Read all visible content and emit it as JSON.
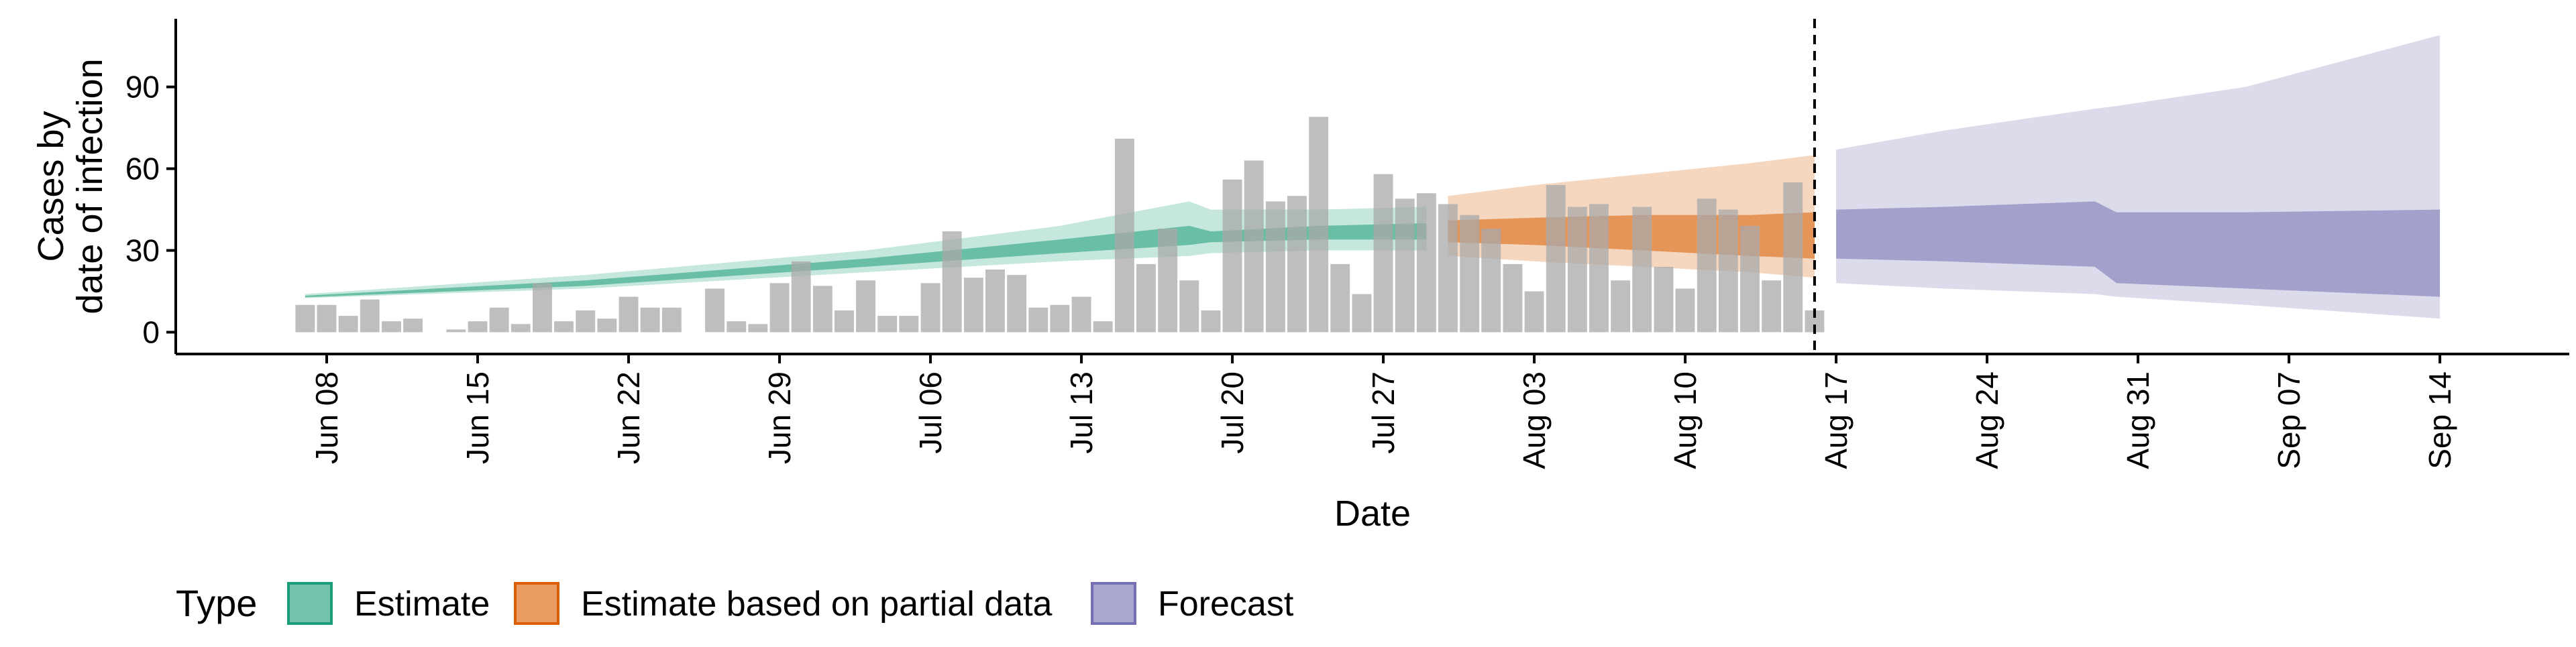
{
  "chart_data": {
    "type": "area",
    "xlabel": "Date",
    "ylabel": [
      "Cases by",
      "date of infection"
    ],
    "ylim": [
      -8,
      115
    ],
    "yticks": [
      0,
      30,
      60,
      90
    ],
    "x_range": [
      "2020-06-01",
      "2020-09-20"
    ],
    "x_ticks": [
      {
        "date": "2020-06-08",
        "label": "Jun 08"
      },
      {
        "date": "2020-06-15",
        "label": "Jun 15"
      },
      {
        "date": "2020-06-22",
        "label": "Jun 22"
      },
      {
        "date": "2020-06-29",
        "label": "Jun 29"
      },
      {
        "date": "2020-07-06",
        "label": "Jul 06"
      },
      {
        "date": "2020-07-13",
        "label": "Jul 13"
      },
      {
        "date": "2020-07-20",
        "label": "Jul 20"
      },
      {
        "date": "2020-07-27",
        "label": "Jul 27"
      },
      {
        "date": "2020-08-03",
        "label": "Aug 03"
      },
      {
        "date": "2020-08-10",
        "label": "Aug 10"
      },
      {
        "date": "2020-08-17",
        "label": "Aug 17"
      },
      {
        "date": "2020-08-24",
        "label": "Aug 24"
      },
      {
        "date": "2020-08-31",
        "label": "Aug 31"
      },
      {
        "date": "2020-09-07",
        "label": "Sep 07"
      },
      {
        "date": "2020-09-14",
        "label": "Sep 14"
      }
    ],
    "reported_cases": {
      "start_date": "2020-06-07",
      "values": [
        10,
        10,
        6,
        12,
        4,
        5,
        0,
        1,
        4,
        9,
        3,
        18,
        4,
        8,
        5,
        13,
        9,
        9,
        0,
        16,
        4,
        3,
        18,
        26,
        17,
        8,
        19,
        6,
        6,
        18,
        37,
        20,
        23,
        21,
        9,
        10,
        13,
        4,
        71,
        25,
        38,
        19,
        8,
        56,
        63,
        48,
        50,
        79,
        25,
        14,
        58,
        49,
        51,
        47,
        43,
        38,
        25,
        15,
        54,
        46,
        47,
        19,
        46,
        24,
        16,
        49,
        45,
        39,
        19,
        55,
        8
      ]
    },
    "estimate_date_marker": "2020-08-16",
    "legend": {
      "title": "Type",
      "position": "bottom",
      "items": [
        {
          "label": "Estimate",
          "color": "#1b9e77"
        },
        {
          "label": "Estimate based on partial data",
          "color": "#d95f02"
        },
        {
          "label": "Forecast",
          "color": "#7570b3"
        }
      ]
    },
    "bands": [
      {
        "type": "Estimate",
        "color": "#1b9e77",
        "points": [
          {
            "date": "2020-06-07",
            "lo90": 12.5,
            "lo50": 12.8,
            "hi50": 13.4,
            "hi90": 14.0
          },
          {
            "date": "2020-06-20",
            "lo90": 16.0,
            "lo50": 17.0,
            "hi50": 19.0,
            "hi90": 21.0
          },
          {
            "date": "2020-07-03",
            "lo90": 22.0,
            "lo50": 24.0,
            "hi50": 27.0,
            "hi90": 30.0
          },
          {
            "date": "2020-07-12",
            "lo90": 26.0,
            "lo50": 29.0,
            "hi50": 34.0,
            "hi90": 39.0
          },
          {
            "date": "2020-07-18",
            "lo90": 28.0,
            "lo50": 32.0,
            "hi50": 39.0,
            "hi90": 48.0
          },
          {
            "date": "2020-07-19",
            "lo90": 29.0,
            "lo50": 33.0,
            "hi50": 37.0,
            "hi90": 45.0
          },
          {
            "date": "2020-07-24",
            "lo90": 30.0,
            "lo50": 34.0,
            "hi50": 39.0,
            "hi90": 45.0
          },
          {
            "date": "2020-07-29",
            "lo90": 30.0,
            "lo50": 34.0,
            "hi50": 40.0,
            "hi90": 46.0
          }
        ]
      },
      {
        "type": "Estimate based on partial data",
        "color": "#d95f02",
        "points": [
          {
            "date": "2020-07-30",
            "lo90": 28.0,
            "lo50": 33.0,
            "hi50": 41.0,
            "hi90": 50.0
          },
          {
            "date": "2020-08-03",
            "lo90": 26.0,
            "lo50": 32.0,
            "hi50": 42.0,
            "hi90": 54.0
          },
          {
            "date": "2020-08-08",
            "lo90": 24.0,
            "lo50": 30.0,
            "hi50": 43.0,
            "hi90": 58.0
          },
          {
            "date": "2020-08-13",
            "lo90": 22.0,
            "lo50": 28.0,
            "hi50": 43.0,
            "hi90": 62.0
          },
          {
            "date": "2020-08-16",
            "lo90": 20.0,
            "lo50": 27.0,
            "hi50": 44.0,
            "hi90": 65.0
          }
        ]
      },
      {
        "type": "Forecast",
        "color": "#7570b3",
        "points": [
          {
            "date": "2020-08-17",
            "lo90": 18.0,
            "lo50": 27.0,
            "hi50": 45.0,
            "hi90": 67.0
          },
          {
            "date": "2020-08-22",
            "lo90": 16.0,
            "lo50": 26.0,
            "hi50": 46.0,
            "hi90": 74.0
          },
          {
            "date": "2020-08-29",
            "lo90": 14.0,
            "lo50": 24.0,
            "hi50": 48.0,
            "hi90": 82.0
          },
          {
            "date": "2020-08-30",
            "lo90": 13.0,
            "lo50": 18.0,
            "hi50": 44.0,
            "hi90": 83.0
          },
          {
            "date": "2020-09-05",
            "lo90": 10.0,
            "lo50": 16.0,
            "hi50": 44.0,
            "hi90": 90.0
          },
          {
            "date": "2020-09-14",
            "lo90": 5.0,
            "lo50": 13.0,
            "hi50": 45.0,
            "hi90": 109.0
          }
        ]
      }
    ]
  }
}
